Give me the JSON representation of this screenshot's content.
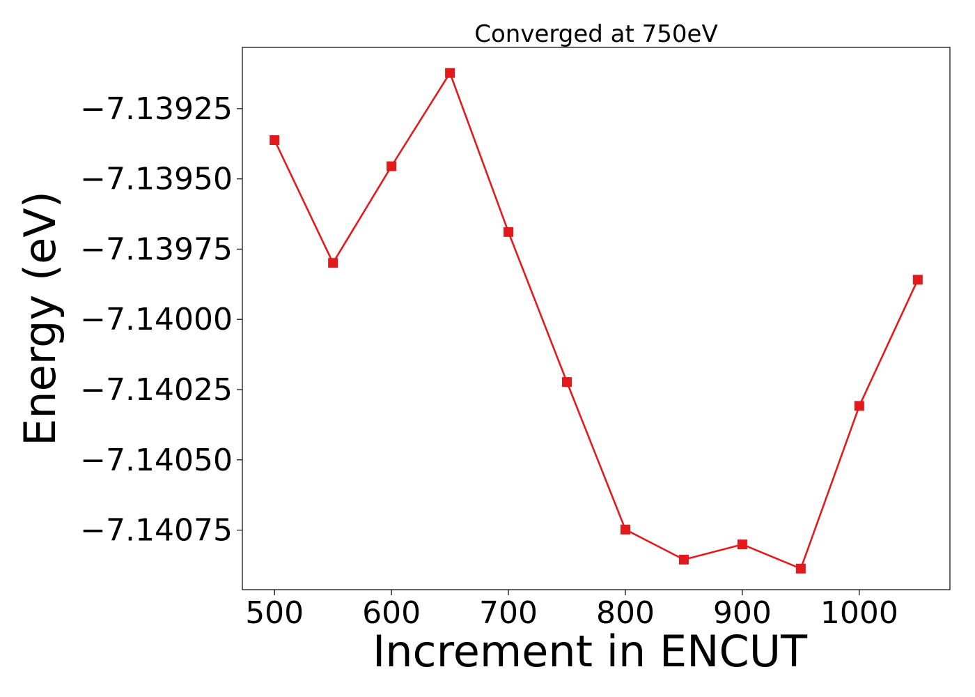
{
  "chart_data": {
    "type": "line",
    "title": "Converged at 750eV",
    "xlabel": "Increment in ENCUT",
    "ylabel": "Energy (eV)",
    "x": [
      500,
      550,
      600,
      650,
      700,
      750,
      800,
      850,
      900,
      950,
      1000,
      1050
    ],
    "series": [
      {
        "values": [
          -7.139362,
          -7.139799,
          -7.139455,
          -7.139123,
          -7.139689,
          -7.140223,
          -7.140748,
          -7.140855,
          -7.140801,
          -7.140887,
          -7.140308,
          -7.139859
        ],
        "color": "#e31a1c",
        "marker": "square"
      }
    ],
    "xticks": [
      500,
      600,
      700,
      800,
      900,
      1000
    ],
    "xtick_labels": [
      "500",
      "600",
      "700",
      "800",
      "900",
      "1000"
    ],
    "yticks": [
      -7.13925,
      -7.1395,
      -7.13975,
      -7.14,
      -7.14025,
      -7.1405,
      -7.14075
    ],
    "ytick_labels": [
      "−7.13925",
      "−7.13950",
      "−7.13975",
      "−7.14000",
      "−7.14025",
      "−7.14050",
      "−7.14075"
    ],
    "xlim": [
      472.5,
      1077.5
    ],
    "ylim": [
      -7.140962,
      -7.139032
    ],
    "grid": false,
    "legend": "none"
  }
}
